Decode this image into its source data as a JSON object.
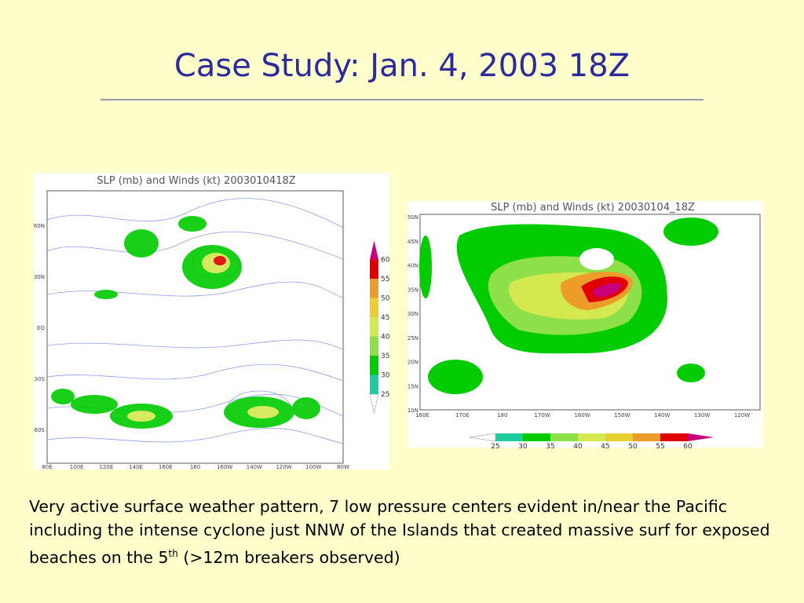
{
  "title": "Case Study: Jan. 4, 2003 18Z",
  "map_left": {
    "title": "SLP (mb) and Winds (kt) 2003010418Z",
    "xlabels": [
      "80E",
      "100E",
      "120E",
      "140E",
      "160E",
      "180",
      "160W",
      "140W",
      "120W",
      "100W",
      "80W"
    ],
    "ylabels": [
      "60N",
      "30N",
      "EQ",
      "30S",
      "60S"
    ],
    "colorbar": [
      25,
      30,
      35,
      40,
      45,
      50,
      55,
      60
    ]
  },
  "map_right": {
    "title": "SLP (mb) and Winds (kt) 20030104_18Z",
    "xlabels": [
      "160E",
      "170E",
      "180",
      "170W",
      "160W",
      "150W",
      "140W",
      "130W",
      "120W"
    ],
    "ylabels": [
      "50N",
      "45N",
      "40N",
      "35N",
      "30N",
      "25N",
      "20N",
      "15N",
      "10N"
    ],
    "colorbar": [
      25,
      30,
      35,
      40,
      45,
      50,
      55,
      60
    ]
  },
  "colorbar_colors": [
    "#1ecc9e",
    "#00cc00",
    "#8ee04a",
    "#d4e850",
    "#e8d030",
    "#ec9c28",
    "#e00000",
    "#c8007a"
  ],
  "body": {
    "text": "Very active surface weather pattern, 7 low pressure centers evident in/near the Pacific including the intense cyclone just NNW of the Islands that created massive surf for exposed beaches on the 5",
    "superscript": "th",
    "tail": " (>12m breakers observed)"
  }
}
